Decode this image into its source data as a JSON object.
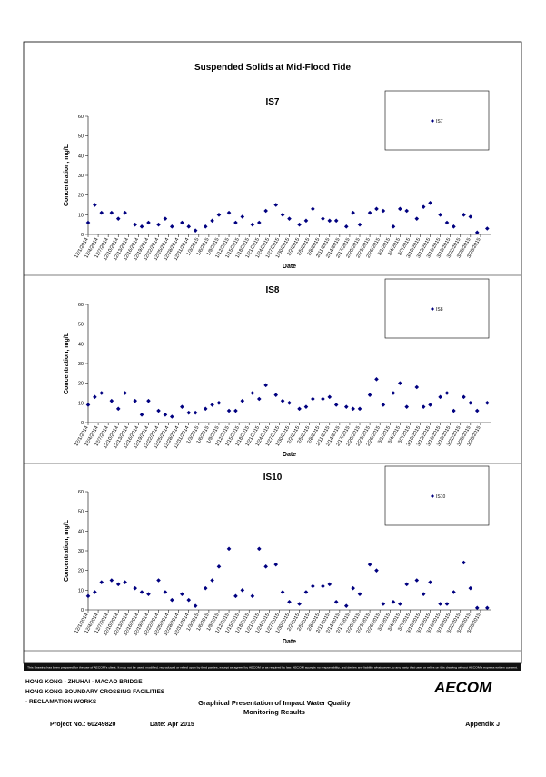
{
  "title": "Suspended Solids at Mid-Flood Tide",
  "chart_data": [
    {
      "type": "scatter",
      "title": "IS7",
      "x_label": "Date",
      "y_label": "Concentration, mg/L",
      "ylim": [
        0,
        60
      ],
      "yticks": [
        0,
        10,
        20,
        30,
        40,
        50,
        60
      ],
      "xlim": [
        "12/1/2014",
        "3/31/2015"
      ],
      "xticks": [
        "12/1/2014",
        "12/4/2014",
        "12/7/2014",
        "12/10/2014",
        "12/13/2014",
        "12/16/2014",
        "12/19/2014",
        "12/22/2014",
        "12/25/2014",
        "12/28/2014",
        "12/31/2014",
        "1/3/2015",
        "1/6/2015",
        "1/9/2015",
        "1/12/2015",
        "1/15/2015",
        "1/18/2015",
        "1/21/2015",
        "1/24/2015",
        "1/27/2015",
        "1/30/2015",
        "2/2/2015",
        "2/5/2015",
        "2/8/2015",
        "2/11/2015",
        "2/14/2015",
        "2/17/2015",
        "2/20/2015",
        "2/23/2015",
        "2/26/2015",
        "3/1/2015",
        "3/4/2015",
        "3/7/2015",
        "3/10/2015",
        "3/13/2015",
        "3/16/2015",
        "3/19/2015",
        "3/22/2015",
        "3/25/2015",
        "3/28/2015"
      ],
      "x": [
        "12/1/2014",
        "12/3/2014",
        "12/5/2014",
        "12/8/2014",
        "12/10/2014",
        "12/12/2014",
        "12/15/2014",
        "12/17/2014",
        "12/19/2014",
        "12/22/2014",
        "12/24/2014",
        "12/26/2014",
        "12/29/2014",
        "12/31/2014",
        "1/2/2015",
        "1/5/2015",
        "1/7/2015",
        "1/9/2015",
        "1/12/2015",
        "1/14/2015",
        "1/16/2015",
        "1/19/2015",
        "1/21/2015",
        "1/23/2015",
        "1/26/2015",
        "1/28/2015",
        "1/30/2015",
        "2/2/2015",
        "2/4/2015",
        "2/6/2015",
        "2/9/2015",
        "2/11/2015",
        "2/13/2015",
        "2/16/2015",
        "2/18/2015",
        "2/20/2015",
        "2/23/2015",
        "2/25/2015",
        "2/27/2015",
        "3/2/2015",
        "3/4/2015",
        "3/6/2015",
        "3/9/2015",
        "3/11/2015",
        "3/13/2015",
        "3/16/2015",
        "3/18/2015",
        "3/20/2015",
        "3/23/2015",
        "3/25/2015",
        "3/27/2015",
        "3/30/2015"
      ],
      "series": [
        {
          "name": "IS7",
          "color": "#000080",
          "values": [
            6,
            15,
            11,
            11,
            8,
            11,
            5,
            4,
            6,
            5,
            8,
            4,
            6,
            4,
            2,
            4,
            7,
            10,
            11,
            6,
            9,
            5,
            6,
            12,
            15,
            10,
            8,
            5,
            7,
            13,
            8,
            7,
            7,
            4,
            11,
            5,
            11,
            13,
            12,
            4,
            13,
            12,
            8,
            14,
            16,
            10,
            6,
            4,
            10,
            9,
            1,
            3
          ]
        }
      ]
    },
    {
      "type": "scatter",
      "title": "IS8",
      "x_label": "Date",
      "y_label": "Concentration, mg/L",
      "ylim": [
        0,
        60
      ],
      "yticks": [
        0,
        10,
        20,
        30,
        40,
        50,
        60
      ],
      "xlim": [
        "12/1/2014",
        "3/31/2015"
      ],
      "xticks": [
        "12/1/2014",
        "12/4/2014",
        "12/7/2014",
        "12/10/2014",
        "12/13/2014",
        "12/16/2014",
        "12/19/2014",
        "12/22/2014",
        "12/25/2014",
        "12/28/2014",
        "12/31/2014",
        "1/3/2015",
        "1/6/2015",
        "1/9/2015",
        "1/12/2015",
        "1/15/2015",
        "1/18/2015",
        "1/21/2015",
        "1/24/2015",
        "1/27/2015",
        "1/30/2015",
        "2/2/2015",
        "2/5/2015",
        "2/8/2015",
        "2/11/2015",
        "2/14/2015",
        "2/17/2015",
        "2/20/2015",
        "2/23/2015",
        "2/26/2015",
        "3/1/2015",
        "3/4/2015",
        "3/7/2015",
        "3/10/2015",
        "3/13/2015",
        "3/16/2015",
        "3/19/2015",
        "3/22/2015",
        "3/25/2015",
        "3/28/2015"
      ],
      "x": [
        "12/1/2014",
        "12/3/2014",
        "12/5/2014",
        "12/8/2014",
        "12/10/2014",
        "12/12/2014",
        "12/15/2014",
        "12/17/2014",
        "12/19/2014",
        "12/22/2014",
        "12/24/2014",
        "12/26/2014",
        "12/29/2014",
        "12/31/2014",
        "1/2/2015",
        "1/5/2015",
        "1/7/2015",
        "1/9/2015",
        "1/12/2015",
        "1/14/2015",
        "1/16/2015",
        "1/19/2015",
        "1/21/2015",
        "1/23/2015",
        "1/26/2015",
        "1/28/2015",
        "1/30/2015",
        "2/2/2015",
        "2/4/2015",
        "2/6/2015",
        "2/9/2015",
        "2/11/2015",
        "2/13/2015",
        "2/16/2015",
        "2/18/2015",
        "2/20/2015",
        "2/23/2015",
        "2/25/2015",
        "2/27/2015",
        "3/2/2015",
        "3/4/2015",
        "3/6/2015",
        "3/9/2015",
        "3/11/2015",
        "3/13/2015",
        "3/16/2015",
        "3/18/2015",
        "3/20/2015",
        "3/23/2015",
        "3/25/2015",
        "3/27/2015",
        "3/30/2015"
      ],
      "series": [
        {
          "name": "IS8",
          "color": "#000080",
          "values": [
            9,
            13,
            15,
            11,
            7,
            15,
            11,
            4,
            11,
            6,
            4,
            3,
            8,
            5,
            5,
            7,
            9,
            10,
            6,
            6,
            11,
            15,
            12,
            19,
            14,
            11,
            10,
            7,
            8,
            12,
            12,
            13,
            9,
            8,
            7,
            7,
            14,
            22,
            9,
            15,
            20,
            8,
            18,
            8,
            9,
            13,
            15,
            6,
            13,
            10,
            6,
            10
          ]
        }
      ]
    },
    {
      "type": "scatter",
      "title": "IS10",
      "x_label": "Date",
      "y_label": "Concentration, mg/L",
      "ylim": [
        0,
        60
      ],
      "yticks": [
        0,
        10,
        20,
        30,
        40,
        50,
        60
      ],
      "xlim": [
        "12/1/2014",
        "3/31/2015"
      ],
      "xticks": [
        "12/1/2014",
        "12/4/2014",
        "12/7/2014",
        "12/10/2014",
        "12/13/2014",
        "12/16/2014",
        "12/19/2014",
        "12/22/2014",
        "12/25/2014",
        "12/28/2014",
        "12/31/2014",
        "1/3/2015",
        "1/6/2015",
        "1/9/2015",
        "1/12/2015",
        "1/15/2015",
        "1/18/2015",
        "1/21/2015",
        "1/24/2015",
        "1/27/2015",
        "1/30/2015",
        "2/2/2015",
        "2/5/2015",
        "2/8/2015",
        "2/11/2015",
        "2/14/2015",
        "2/17/2015",
        "2/20/2015",
        "2/23/2015",
        "2/26/2015",
        "3/1/2015",
        "3/4/2015",
        "3/7/2015",
        "3/10/2015",
        "3/13/2015",
        "3/16/2015",
        "3/19/2015",
        "3/22/2015",
        "3/25/2015",
        "3/28/2015"
      ],
      "x": [
        "12/1/2014",
        "12/3/2014",
        "12/5/2014",
        "12/8/2014",
        "12/10/2014",
        "12/12/2014",
        "12/15/2014",
        "12/17/2014",
        "12/19/2014",
        "12/22/2014",
        "12/24/2014",
        "12/26/2014",
        "12/29/2014",
        "12/31/2014",
        "1/2/2015",
        "1/5/2015",
        "1/7/2015",
        "1/9/2015",
        "1/12/2015",
        "1/14/2015",
        "1/16/2015",
        "1/19/2015",
        "1/21/2015",
        "1/23/2015",
        "1/26/2015",
        "1/28/2015",
        "1/30/2015",
        "2/2/2015",
        "2/4/2015",
        "2/6/2015",
        "2/9/2015",
        "2/11/2015",
        "2/13/2015",
        "2/16/2015",
        "2/18/2015",
        "2/20/2015",
        "2/23/2015",
        "2/25/2015",
        "2/27/2015",
        "3/2/2015",
        "3/4/2015",
        "3/6/2015",
        "3/9/2015",
        "3/11/2015",
        "3/13/2015",
        "3/16/2015",
        "3/18/2015",
        "3/20/2015",
        "3/23/2015",
        "3/25/2015",
        "3/27/2015",
        "3/30/2015"
      ],
      "series": [
        {
          "name": "IS10",
          "color": "#000080",
          "values": [
            7,
            9,
            14,
            15,
            13,
            14,
            11,
            9,
            8,
            15,
            9,
            5,
            8,
            5,
            2,
            11,
            15,
            22,
            31,
            7,
            10,
            7,
            31,
            22,
            23,
            9,
            4,
            3,
            9,
            12,
            12,
            13,
            4,
            2,
            11,
            8,
            23,
            20,
            3,
            4,
            3,
            13,
            15,
            8,
            14,
            3,
            3,
            9,
            24,
            11,
            1,
            1
          ]
        }
      ]
    }
  ],
  "disclaimer": "This Drawing has been prepared for the use of AECOM's client. It may not be used, modified, reproduced or relied upon by third parties, except as agreed by AECOM or as required by law. AECOM accepts no responsibility, and denies any liability whatsoever, to any party that uses or relies on this drawing without AECOM's express written consent.",
  "footer": {
    "project_lines": [
      "HONG KONG - ZHUHAI - MACAO BRIDGE",
      "HONG KONG BOUNDARY CROSSING FACILITIES",
      "- RECLAMATION WORKS"
    ],
    "logo": "AECOM",
    "caption_lines": [
      "Graphical Presentation of Impact Water Quality",
      "Monitoring Results"
    ],
    "project_no": "Project No.: 60249820",
    "date": "Date: Apr 2015",
    "appendix": "Appendix J"
  }
}
